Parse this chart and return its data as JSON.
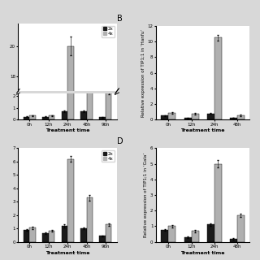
{
  "panel_A": {
    "categories": [
      "0h",
      "12h",
      "24h",
      "48h",
      "96h"
    ],
    "vals_2x": [
      0.25,
      0.25,
      0.7,
      0.7,
      0.2
    ],
    "vals_4x": [
      0.35,
      0.35,
      20.0,
      5.0,
      2.3
    ],
    "err_2x": [
      0.04,
      0.04,
      0.1,
      0.08,
      0.04
    ],
    "err_4x": [
      0.04,
      0.04,
      0.6,
      0.25,
      0.15
    ],
    "xlabel": "Treatment time",
    "ylim_low": [
      0,
      2.2
    ],
    "ylim_high": [
      17,
      21.5
    ],
    "yticks_low": [
      0,
      1,
      2
    ],
    "yticks_high": [
      18,
      20
    ],
    "break_low": 2.2,
    "break_high": 17.0
  },
  "panel_B": {
    "categories": [
      "0h",
      "12h",
      "24h",
      "48h"
    ],
    "vals_2x": [
      0.5,
      0.2,
      0.8,
      0.22
    ],
    "vals_4x": [
      0.9,
      0.75,
      10.5,
      0.55
    ],
    "err_2x": [
      0.08,
      0.04,
      0.1,
      0.04
    ],
    "err_4x": [
      0.1,
      0.07,
      0.35,
      0.07
    ],
    "ylabel": "Relative expression of TIP1;1 in ‘Hanfu’",
    "xlabel": "Treatment time",
    "ylim": [
      0,
      12
    ],
    "yticks": [
      0,
      2,
      4,
      6,
      8,
      10,
      12
    ],
    "label": "B"
  },
  "panel_C": {
    "categories": [
      "0h",
      "12h",
      "24h",
      "48h",
      "96h"
    ],
    "vals_2x": [
      0.9,
      0.65,
      1.2,
      1.0,
      0.45
    ],
    "vals_4x": [
      1.05,
      0.8,
      6.2,
      3.3,
      1.3
    ],
    "err_2x": [
      0.05,
      0.05,
      0.12,
      0.08,
      0.04
    ],
    "err_4x": [
      0.08,
      0.06,
      0.22,
      0.22,
      0.1
    ],
    "xlabel": "Treatment time",
    "ylim": [
      0,
      7
    ],
    "yticks": [
      0,
      1,
      2,
      3,
      4,
      5,
      6,
      7
    ]
  },
  "panel_D": {
    "categories": [
      "0h",
      "12h",
      "24h",
      "48h"
    ],
    "vals_2x": [
      0.75,
      0.3,
      1.1,
      0.2
    ],
    "vals_4x": [
      1.0,
      0.7,
      5.0,
      1.7
    ],
    "err_2x": [
      0.05,
      0.04,
      0.1,
      0.04
    ],
    "err_4x": [
      0.08,
      0.07,
      0.22,
      0.1
    ],
    "ylabel": "Relative expression of TIP1;1 in ‘Gala’",
    "xlabel": "Treatment time",
    "ylim": [
      0,
      6
    ],
    "yticks": [
      0,
      1,
      2,
      3,
      4,
      5,
      6
    ],
    "label": "D"
  },
  "bar_color_2x": "#1a1a1a",
  "bar_color_4x": "#b0b0b0",
  "bar_width": 0.32,
  "fontsize_label": 4.5,
  "fontsize_tick": 4.0,
  "fontsize_panel": 7,
  "fontsize_legend": 4.0,
  "bg_color": "#d8d8d8"
}
